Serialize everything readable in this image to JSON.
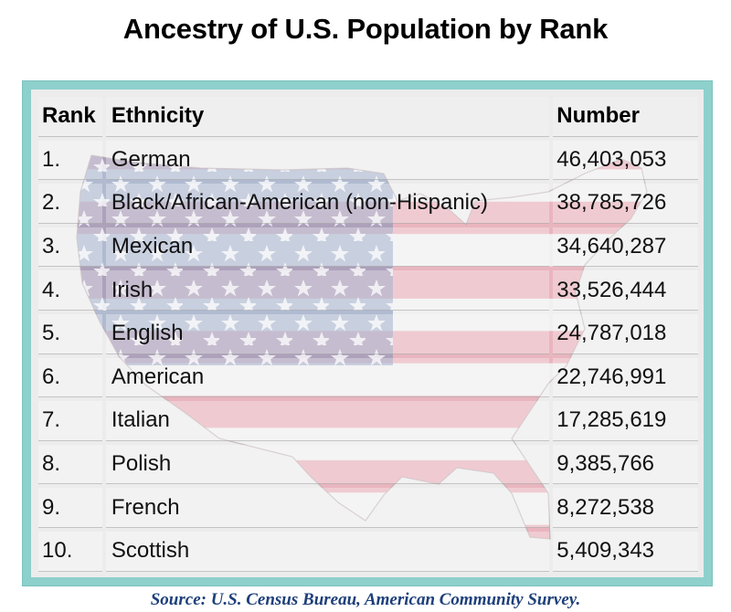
{
  "title": "Ancestry of U.S. Population by Rank",
  "source": "Source: U.S. Census Bureau, American Community Survey.",
  "colors": {
    "frame": "#8ed0cc",
    "flag_blue": "#7c8fb8",
    "flag_red": "#e7a2ad",
    "source_text": "#1e3f7a"
  },
  "chart_data": {
    "type": "table",
    "title": "Ancestry of U.S. Population by Rank",
    "columns": [
      "Rank",
      "Ethnicity",
      "Number"
    ],
    "rows": [
      {
        "rank": "1.",
        "ethnicity": "German",
        "number": "46,403,053"
      },
      {
        "rank": "2.",
        "ethnicity": "Black/African-American (non-Hispanic)",
        "number": "38,785,726"
      },
      {
        "rank": "3.",
        "ethnicity": "Mexican",
        "number": "34,640,287"
      },
      {
        "rank": "4.",
        "ethnicity": "Irish",
        "number": "33,526,444"
      },
      {
        "rank": "5.",
        "ethnicity": "English",
        "number": "24,787,018"
      },
      {
        "rank": "6.",
        "ethnicity": "American",
        "number": "22,746,991"
      },
      {
        "rank": "7.",
        "ethnicity": "Italian",
        "number": "17,285,619"
      },
      {
        "rank": "8.",
        "ethnicity": "Polish",
        "number": "9,385,766"
      },
      {
        "rank": "9.",
        "ethnicity": "French",
        "number": "8,272,538"
      },
      {
        "rank": "10.",
        "ethnicity": "Scottish",
        "number": "5,409,343"
      }
    ]
  }
}
